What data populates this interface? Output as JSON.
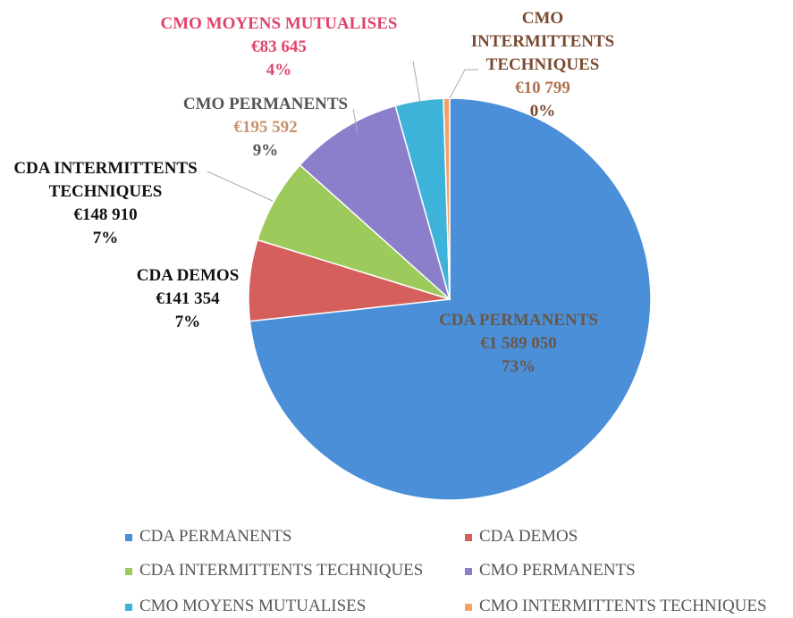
{
  "chart_data": {
    "type": "pie",
    "categories": [
      "CDA PERMANENTS",
      "CDA DEMOS",
      "CDA INTERMITTENTS TECHNIQUES",
      "CMO PERMANENTS",
      "CMO MOYENS MUTUALISES",
      "CMO INTERMITTENTS TECHNIQUES"
    ],
    "values": [
      1589050,
      141354,
      148910,
      195592,
      83645,
      10799
    ],
    "value_labels": [
      "€1 589 050",
      "€141 354",
      "€148 910",
      "€195 592",
      "€83 645",
      "€10 799"
    ],
    "percent_labels": [
      "73%",
      "7%",
      "7%",
      "9%",
      "4%",
      "0%"
    ],
    "colors": [
      "#4a8fd8",
      "#d45f5c",
      "#9cca5b",
      "#8b7fcb",
      "#3eb3d9",
      "#f4a06a"
    ],
    "legend": "bottom"
  }
}
